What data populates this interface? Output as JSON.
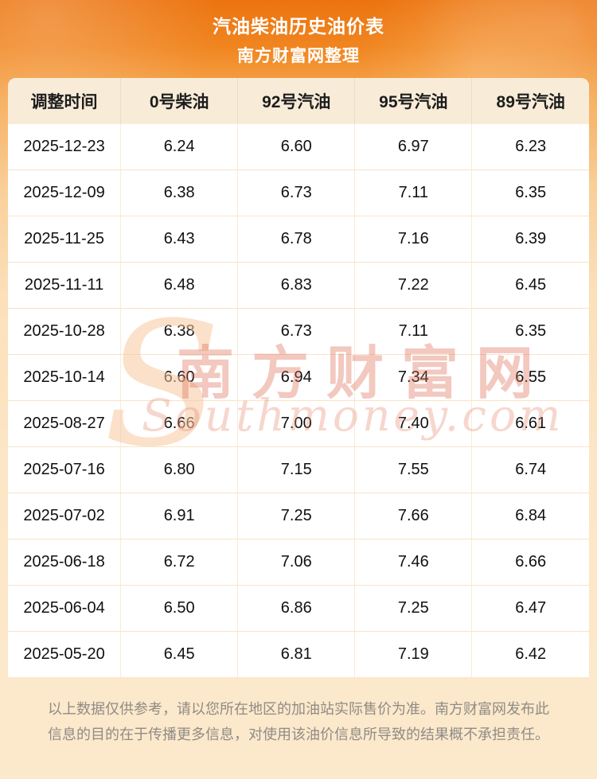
{
  "header": {
    "title": "汽油柴油历史油价表",
    "subtitle": "南方财富网整理"
  },
  "chart_data": {
    "type": "table",
    "title": "汽油柴油历史油价表",
    "subtitle": "南方财富网整理",
    "columns": [
      "调整时间",
      "0号柴油",
      "92号汽油",
      "95号汽油",
      "89号汽油"
    ],
    "rows": [
      [
        "2025-12-23",
        "6.24",
        "6.60",
        "6.97",
        "6.23"
      ],
      [
        "2025-12-09",
        "6.38",
        "6.73",
        "7.11",
        "6.35"
      ],
      [
        "2025-11-25",
        "6.43",
        "6.78",
        "7.16",
        "6.39"
      ],
      [
        "2025-11-11",
        "6.48",
        "6.83",
        "7.22",
        "6.45"
      ],
      [
        "2025-10-28",
        "6.38",
        "6.73",
        "7.11",
        "6.35"
      ],
      [
        "2025-10-14",
        "6.60",
        "6.94",
        "7.34",
        "6.55"
      ],
      [
        "2025-08-27",
        "6.66",
        "7.00",
        "7.40",
        "6.61"
      ],
      [
        "2025-07-16",
        "6.80",
        "7.15",
        "7.55",
        "6.74"
      ],
      [
        "2025-07-02",
        "6.91",
        "7.25",
        "7.66",
        "6.84"
      ],
      [
        "2025-06-18",
        "6.72",
        "7.06",
        "7.46",
        "6.66"
      ],
      [
        "2025-06-04",
        "6.50",
        "6.86",
        "7.25",
        "6.47"
      ],
      [
        "2025-05-20",
        "6.45",
        "6.81",
        "7.19",
        "6.42"
      ]
    ]
  },
  "watermark": {
    "initial": "S",
    "cn": "南方财富网",
    "en": "Southmoney.com"
  },
  "footer": {
    "text": "以上数据仅供参考，请以您所在地区的加油站实际售价为准。南方财富网发布此信息的目的在于传播更多信息，对使用该油价信息所导致的结果概不承担责任。"
  },
  "colors": {
    "accent_orange": "#ec7410",
    "table_header_bg": "#f8ecd8",
    "row_divider": "#f8e3c8",
    "footer_text": "#8f8b86",
    "watermark_red": "#dd6e56"
  }
}
